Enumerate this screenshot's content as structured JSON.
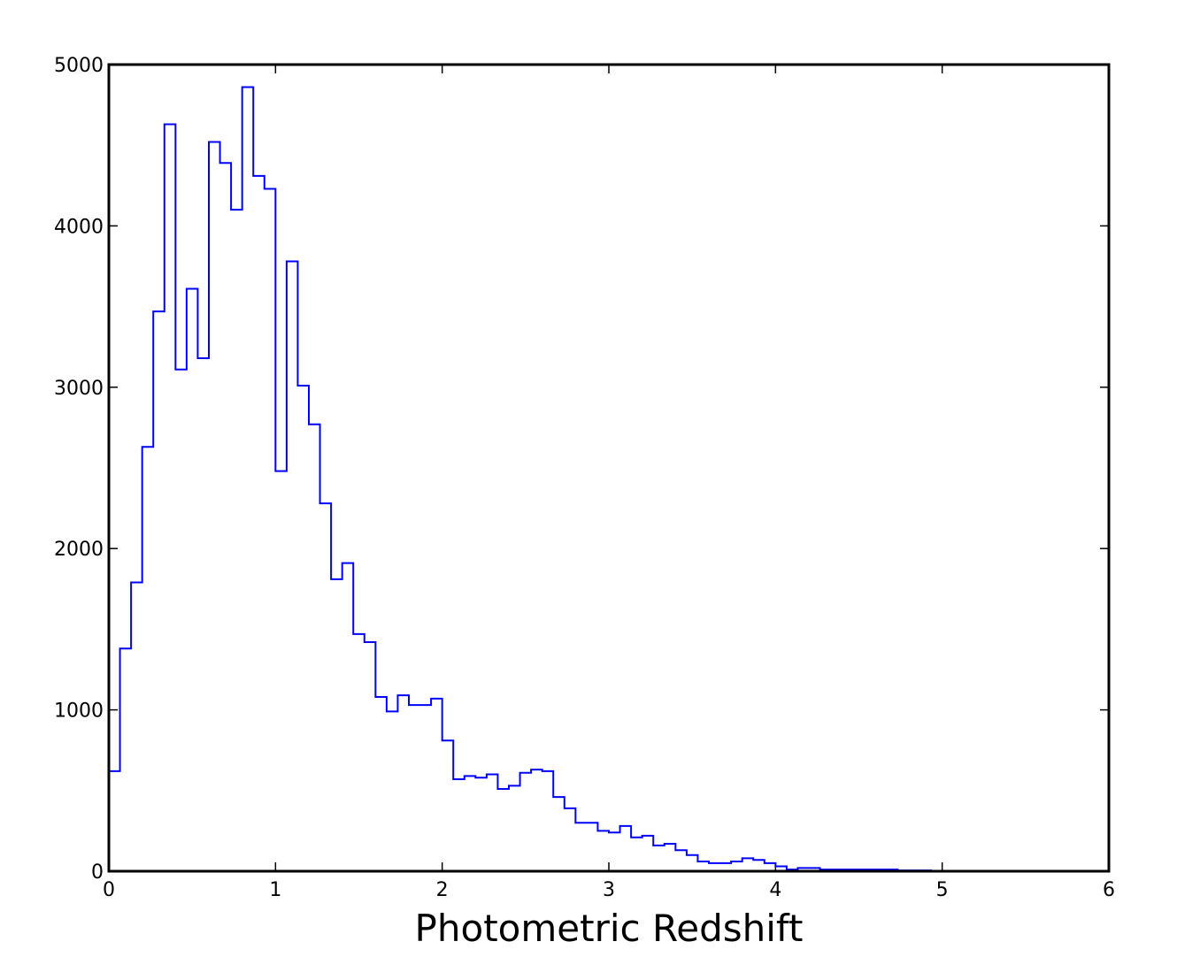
{
  "chart_data": {
    "type": "histogram",
    "title": "",
    "xlabel": "Photometric Redshift",
    "ylabel": "",
    "xlim": [
      0,
      6
    ],
    "ylim": [
      0,
      5000
    ],
    "grid": false,
    "legend": "none",
    "line_color": "#0000ff",
    "bin_width": 0.0666667,
    "x_ticks": [
      "0",
      "1",
      "2",
      "3",
      "4",
      "5",
      "6"
    ],
    "y_ticks": [
      "0",
      "1000",
      "2000",
      "3000",
      "4000",
      "5000"
    ],
    "series": [
      {
        "counts": [
          620,
          1380,
          1790,
          2630,
          3470,
          4630,
          3110,
          3610,
          3180,
          4520,
          4390,
          4100,
          4860,
          4310,
          4230,
          2480,
          3780,
          3010,
          2770,
          2280,
          1810,
          1910,
          1470,
          1420,
          1080,
          990,
          1090,
          1030,
          1030,
          1070,
          810,
          570,
          590,
          580,
          600,
          510,
          530,
          610,
          630,
          620,
          460,
          390,
          300,
          300,
          250,
          240,
          280,
          210,
          220,
          160,
          170,
          130,
          100,
          60,
          50,
          50,
          60,
          80,
          70,
          50,
          30,
          10,
          20,
          20,
          10,
          10,
          10,
          10,
          10,
          10,
          10,
          5,
          5,
          5,
          2,
          2,
          1,
          1,
          0,
          0,
          0,
          0,
          0,
          0,
          0,
          0,
          0,
          0,
          0,
          0
        ]
      }
    ]
  }
}
